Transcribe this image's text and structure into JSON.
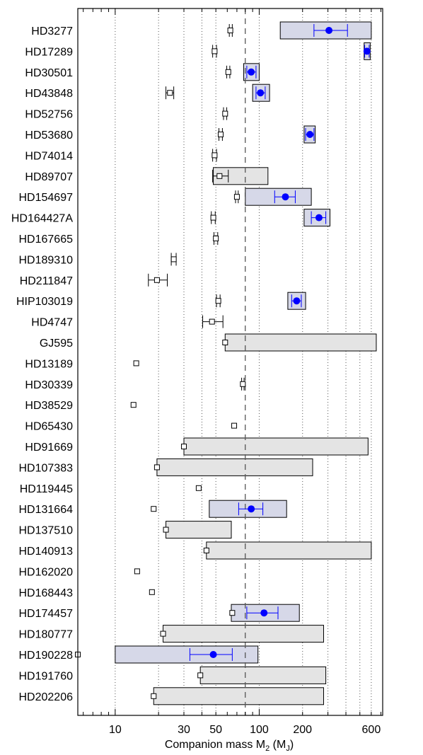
{
  "chart_data": {
    "type": "scatter",
    "title": "",
    "xlabel": "Companion mass M2 (MJ)",
    "xlabel_parts": {
      "main": "Companion mass M",
      "sub1": "2",
      "mid": " (M",
      "sub2": "J",
      "end": ")"
    },
    "xscale": "log",
    "xlim": [
      5.5,
      720
    ],
    "xticks": [
      10,
      30,
      50,
      100,
      200,
      600
    ],
    "xtick_labels": [
      "10",
      "30",
      "50",
      "100",
      "200",
      "600"
    ],
    "grid": "vertical dotted at 10, 20, 30, 40, 50 and 100, 200, 300, 400, 500, 600",
    "reference_line": {
      "x": 80,
      "style": "dashed"
    },
    "colors": {
      "astrometric": "#0000ff",
      "box_fill": "#e4e4e4",
      "box_fill_detected": "#d6d8e8",
      "box_edge": "#000000",
      "grid": "#555555"
    },
    "legend": "none",
    "stars": [
      {
        "name": "HD3277",
        "box": [
          140,
          600
        ],
        "det": [
          305,
          240,
          410
        ],
        "sq": [
          63,
          62,
          65
        ]
      },
      {
        "name": "HD17289",
        "box": [
          535,
          590
        ],
        "det": [
          560,
          540,
          580
        ],
        "sq": [
          49,
          47.5,
          50.5
        ]
      },
      {
        "name": "HD30501",
        "box": [
          78,
          100
        ],
        "det": [
          88,
          82,
          95
        ],
        "sq": [
          61,
          59.5,
          62.5
        ]
      },
      {
        "name": "HD43848",
        "box": [
          90,
          118
        ],
        "det": [
          102,
          95,
          110
        ],
        "sq": [
          24,
          22.5,
          25.5
        ]
      },
      {
        "name": "HD52756",
        "box": null,
        "det": null,
        "sq": [
          58,
          56.5,
          59.5
        ]
      },
      {
        "name": "HD53680",
        "box": [
          205,
          245
        ],
        "det": [
          225,
          210,
          240
        ],
        "sq": [
          54,
          52.5,
          55.5
        ]
      },
      {
        "name": "HD74014",
        "box": null,
        "det": null,
        "sq": [
          49,
          47.5,
          50.5
        ]
      },
      {
        "name": "HD89707",
        "box": [
          48,
          115
        ],
        "det": null,
        "sq": [
          53,
          47.5,
          61
        ]
      },
      {
        "name": "HD154697",
        "box": [
          80,
          230
        ],
        "det": [
          152,
          128,
          178
        ],
        "sq": [
          70,
          68.5,
          71.5
        ]
      },
      {
        "name": "HD164427A",
        "box": [
          205,
          310
        ],
        "det": [
          260,
          230,
          290
        ],
        "sq": [
          48,
          46.5,
          49.5
        ]
      },
      {
        "name": "HD167665",
        "box": null,
        "det": null,
        "sq": [
          50,
          48.5,
          51.5
        ]
      },
      {
        "name": "HD189310",
        "box": null,
        "det": null,
        "sq": [
          25.5,
          24.5,
          26.5
        ]
      },
      {
        "name": "HD211847",
        "box": null,
        "det": null,
        "sq": [
          19.5,
          17,
          23
        ]
      },
      {
        "name": "HIP103019",
        "box": [
          158,
          210
        ],
        "det": [
          182,
          168,
          196
        ],
        "sq": [
          52,
          50.5,
          53.5
        ]
      },
      {
        "name": "HD4747",
        "box": null,
        "det": null,
        "sq": [
          47,
          40.5,
          56
        ]
      },
      {
        "name": "GJ595",
        "box": [
          58,
          650
        ],
        "det": null,
        "sq": [
          58,
          null,
          null
        ]
      },
      {
        "name": "HD13189",
        "box": null,
        "det": null,
        "sq": [
          14,
          null,
          null
        ]
      },
      {
        "name": "HD30339",
        "box": null,
        "det": null,
        "sq": [
          77,
          75.5,
          78.5
        ]
      },
      {
        "name": "HD38529",
        "box": null,
        "det": null,
        "sq": [
          13.4,
          null,
          null
        ]
      },
      {
        "name": "HD65430",
        "box": null,
        "det": null,
        "sq": [
          67,
          null,
          null
        ]
      },
      {
        "name": "HD91669",
        "box": [
          30,
          570
        ],
        "det": null,
        "sq": [
          30,
          null,
          null
        ]
      },
      {
        "name": "HD107383",
        "box": [
          19.5,
          235
        ],
        "det": null,
        "sq": [
          19.5,
          null,
          null
        ]
      },
      {
        "name": "HD119445",
        "box": null,
        "det": null,
        "sq": [
          38,
          null,
          null
        ]
      },
      {
        "name": "HD131664",
        "box": [
          45,
          155
        ],
        "det": [
          88,
          72,
          106
        ],
        "sq": [
          18.5,
          null,
          null
        ]
      },
      {
        "name": "HD137510",
        "box": [
          22.5,
          64
        ],
        "det": null,
        "sq": [
          22.5,
          null,
          null
        ]
      },
      {
        "name": "HD140913",
        "box": [
          43,
          600
        ],
        "det": null,
        "sq": [
          43,
          null,
          null
        ]
      },
      {
        "name": "HD162020",
        "box": null,
        "det": null,
        "sq": [
          14.2,
          null,
          null
        ]
      },
      {
        "name": "HD168443",
        "box": null,
        "det": null,
        "sq": [
          18,
          null,
          null
        ]
      },
      {
        "name": "HD174457",
        "box": [
          64,
          190
        ],
        "det": [
          108,
          82,
          135
        ],
        "sq": [
          65,
          null,
          null
        ]
      },
      {
        "name": "HD180777",
        "box": [
          21.5,
          280
        ],
        "det": null,
        "sq": [
          21.5,
          null,
          null
        ]
      },
      {
        "name": "HD190228",
        "box": [
          10,
          98
        ],
        "det": [
          48,
          33,
          65
        ],
        "sq": [
          5.5,
          null,
          null
        ]
      },
      {
        "name": "HD191760",
        "box": [
          39,
          290
        ],
        "det": null,
        "sq": [
          39,
          null,
          null
        ]
      },
      {
        "name": "HD202206",
        "box": [
          18.5,
          280
        ],
        "det": null,
        "sq": [
          18.5,
          null,
          null
        ]
      }
    ]
  }
}
